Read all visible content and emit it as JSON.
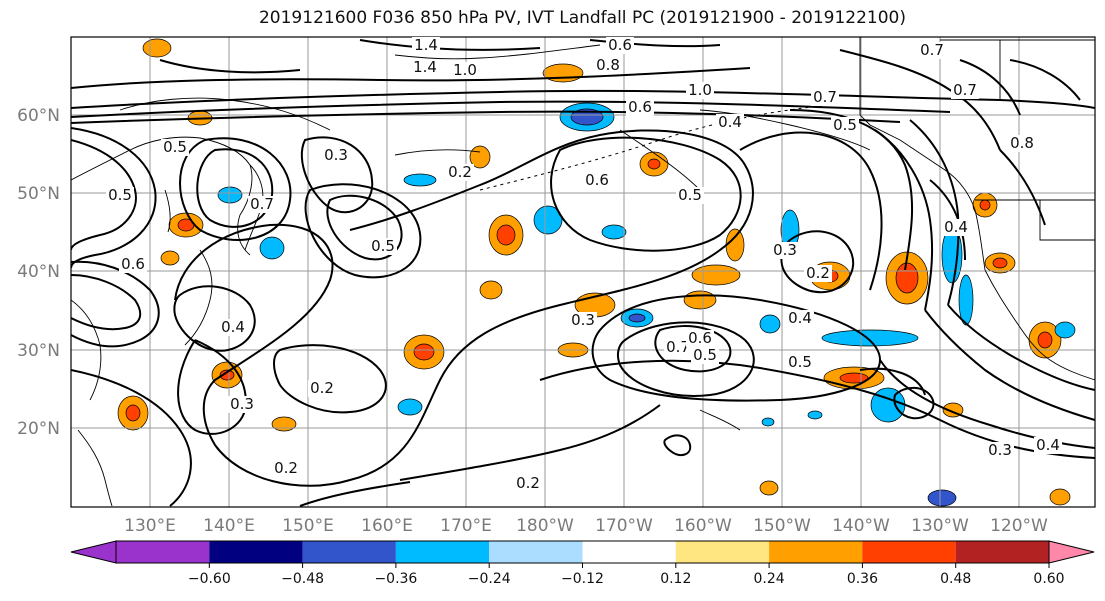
{
  "title": "2019121600 F036 850 hPa PV, IVT Landfall PC (2019121900 - 2019122100)",
  "lat_labels": [
    "60°N",
    "50°N",
    "40°N",
    "30°N",
    "20°N"
  ],
  "lon_labels": [
    "130°E",
    "140°E",
    "150°E",
    "160°E",
    "170°E",
    "180°W",
    "170°W",
    "160°W",
    "150°W",
    "140°W",
    "130°W",
    "120°W"
  ],
  "contour_labels": [
    "1.4",
    "1.4",
    "1.0",
    "0.6",
    "0.8",
    "0.7",
    "0.7",
    "1.0",
    "0.7",
    "0.5",
    "0.8",
    "0.6",
    "0.4",
    "0.5",
    "0.6",
    "0.5",
    "0.3",
    "0.7",
    "0.5",
    "0.2",
    "0.6",
    "0.4",
    "0.3",
    "0.2",
    "0.4",
    "0.3",
    "0.2",
    "0.7",
    "0.6",
    "0.5",
    "0.4",
    "0.5",
    "0.3",
    "0.2",
    "0.3",
    "0.4",
    "0.2",
    "0.5"
  ],
  "colorbar": {
    "colors": [
      "#9933cc",
      "#000080",
      "#3355cc",
      "#00bbff",
      "#aaddff",
      "#ffffff",
      "#ffe680",
      "#ffa000",
      "#ff4000",
      "#b22222",
      "#ff88aa"
    ],
    "tick_labels": [
      "−0.60",
      "−0.48",
      "−0.36",
      "−0.24",
      "−0.12",
      "0.12",
      "0.24",
      "0.36",
      "0.48",
      "0.60"
    ]
  }
}
